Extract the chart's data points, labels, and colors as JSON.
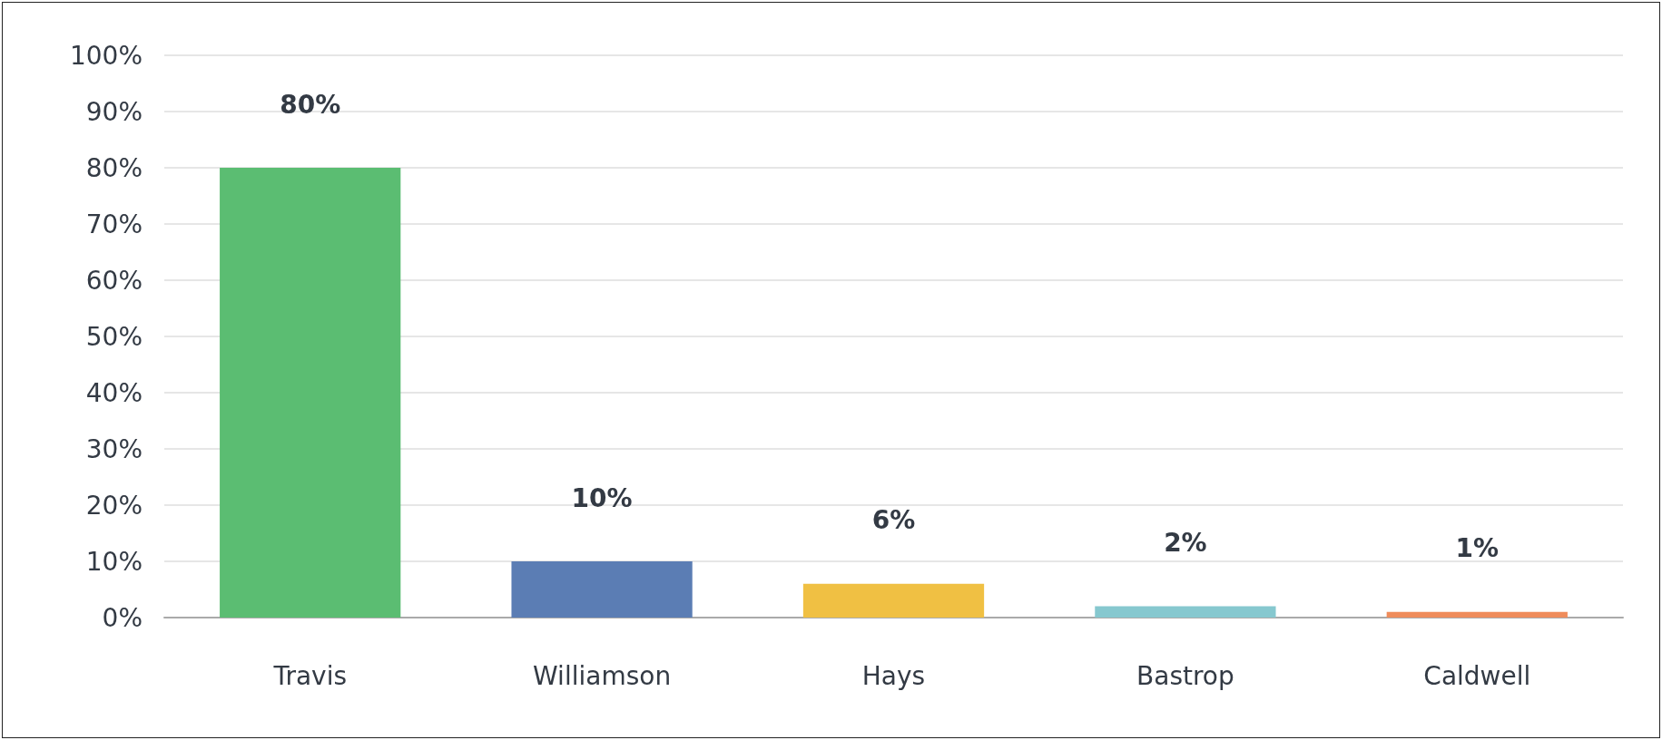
{
  "chart_data": {
    "type": "bar",
    "categories": [
      "Travis",
      "Williamson",
      "Hays",
      "Bastrop",
      "Caldwell"
    ],
    "values": [
      80,
      10,
      6,
      2,
      1
    ],
    "colors": [
      "#5bbd72",
      "#5b7db4",
      "#f0c043",
      "#86c8cf",
      "#ef8c5b"
    ],
    "value_labels": [
      "80%",
      "10%",
      "6%",
      "2%",
      "1%"
    ],
    "ylim": [
      0,
      100
    ],
    "yticks": [
      {
        "value": 0,
        "label": "0%"
      },
      {
        "value": 10,
        "label": "10%"
      },
      {
        "value": 20,
        "label": "20%"
      },
      {
        "value": 30,
        "label": "30%"
      },
      {
        "value": 40,
        "label": "40%"
      },
      {
        "value": 50,
        "label": "50%"
      },
      {
        "value": 60,
        "label": "60%"
      },
      {
        "value": 70,
        "label": "70%"
      },
      {
        "value": 80,
        "label": "80%"
      },
      {
        "value": 90,
        "label": "90%"
      },
      {
        "value": 100,
        "label": "100%"
      }
    ],
    "grid": "y"
  }
}
